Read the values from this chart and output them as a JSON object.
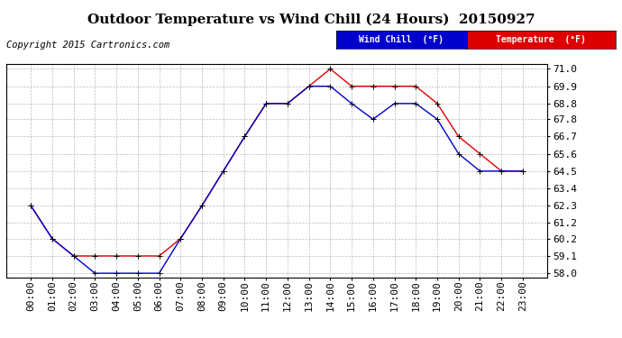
{
  "title": "Outdoor Temperature vs Wind Chill (24 Hours)  20150927",
  "copyright": "Copyright 2015 Cartronics.com",
  "x_labels": [
    "00:00",
    "01:00",
    "02:00",
    "03:00",
    "04:00",
    "05:00",
    "06:00",
    "07:00",
    "08:00",
    "09:00",
    "10:00",
    "11:00",
    "12:00",
    "13:00",
    "14:00",
    "15:00",
    "16:00",
    "17:00",
    "18:00",
    "19:00",
    "20:00",
    "21:00",
    "22:00",
    "23:00"
  ],
  "ylim": [
    57.75,
    71.3
  ],
  "yticks": [
    58.0,
    59.1,
    60.2,
    61.2,
    62.3,
    63.4,
    64.5,
    65.6,
    66.7,
    67.8,
    68.8,
    69.9,
    71.0
  ],
  "temperature": [
    62.3,
    60.2,
    59.1,
    59.1,
    59.1,
    59.1,
    59.1,
    60.2,
    62.3,
    64.5,
    66.7,
    68.8,
    68.8,
    69.9,
    71.0,
    69.9,
    69.9,
    69.9,
    69.9,
    68.8,
    66.7,
    65.6,
    64.5,
    64.5
  ],
  "wind_chill": [
    62.3,
    60.2,
    59.1,
    58.0,
    58.0,
    58.0,
    58.0,
    60.2,
    62.3,
    64.5,
    66.7,
    68.8,
    68.8,
    69.9,
    69.9,
    68.8,
    67.8,
    68.8,
    68.8,
    67.8,
    65.6,
    64.5,
    64.5,
    64.5
  ],
  "temp_color": "#dd0000",
  "wind_chill_color": "#0000cc",
  "background_color": "#ffffff",
  "plot_bg_color": "#ffffff",
  "grid_color": "#aaaaaa",
  "title_fontsize": 11,
  "copyright_fontsize": 7.5,
  "tick_fontsize": 8,
  "legend_wind_chill_bg": "#0000cc",
  "legend_temp_bg": "#dd0000",
  "legend_wind_chill_text": "Wind Chill  (°F)",
  "legend_temp_text": "Temperature  (°F)"
}
